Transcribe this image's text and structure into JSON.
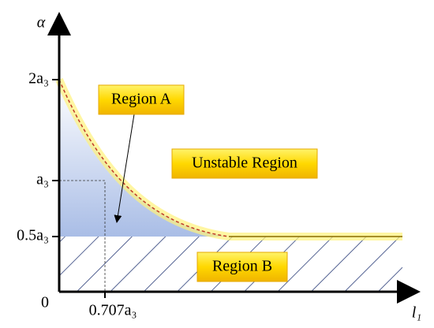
{
  "axes": {
    "y_label": "α",
    "x_label": "l₁",
    "origin": "0"
  },
  "y_ticks": [
    "2a₃",
    "a₃",
    "0.5a₃"
  ],
  "x_ticks": [
    "0.707a₃"
  ],
  "regions": {
    "a": "Region A",
    "unstable": "Unstable Region",
    "b": "Region B"
  }
}
